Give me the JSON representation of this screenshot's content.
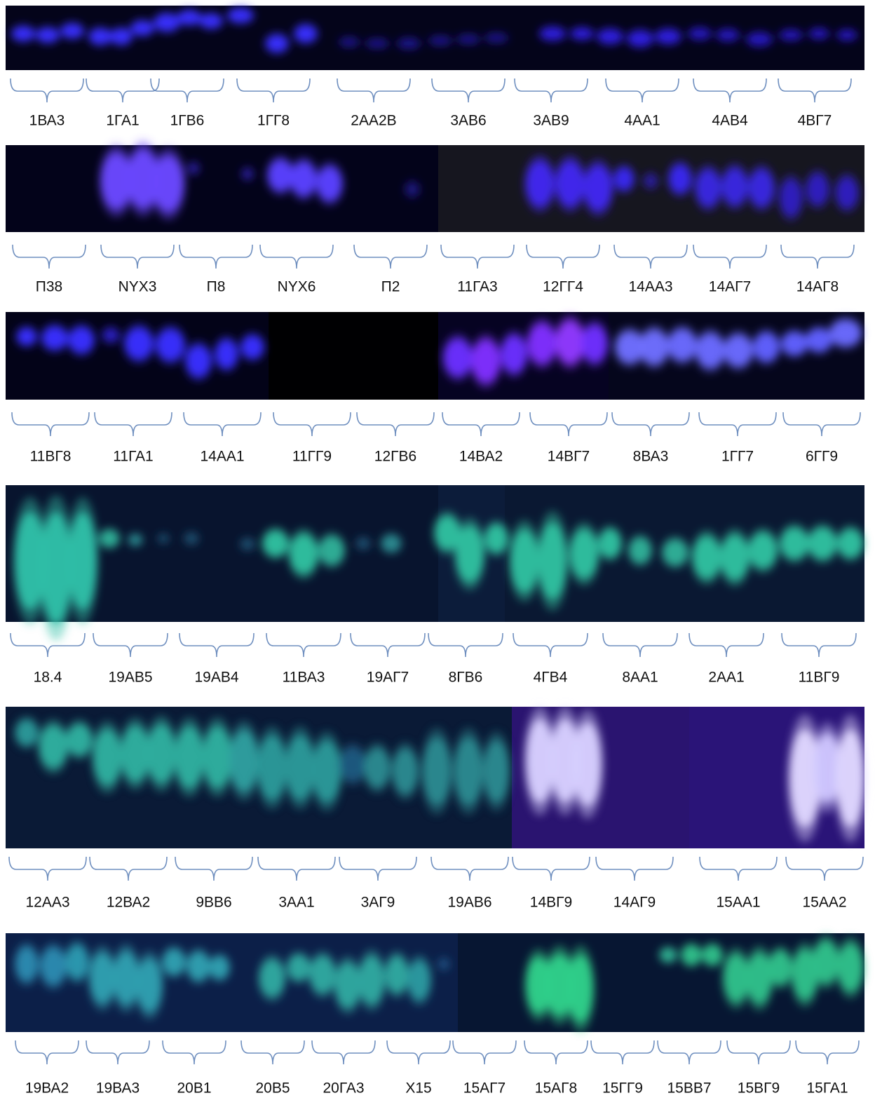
{
  "panels": [
    {
      "labels": [
        "1ВА3",
        "1ГА1",
        "1ГВ6",
        "1ГГ8",
        "2АА2В",
        "3АВ6",
        "3АВ9",
        "4АА1",
        "4АВ4",
        "4ВГ7"
      ]
    },
    {
      "labels": [
        "П38",
        "NYX3",
        "П8",
        "NYX6",
        "П2",
        "11ГА3",
        "12ГГ4",
        "14АА3",
        "14АГ7",
        "14АГ8"
      ]
    },
    {
      "labels": [
        "11ВГ8",
        "11ГА1",
        "14АА1",
        "11ГГ9",
        "12ГВ6",
        "14ВА2",
        "14ВГ7",
        "8ВА3",
        "1ГГ7",
        "6ГГ9"
      ]
    },
    {
      "labels": [
        "18.4",
        "19АВ5",
        "19АВ4",
        "11ВА3",
        "19АГ7",
        "8ГВ6",
        "4ГВ4",
        "8АА1",
        "2АА1",
        "11ВГ9"
      ]
    },
    {
      "labels": [
        "12АА3",
        "12ВА2",
        "9ВВ6",
        "3АА1",
        "3АГ9",
        "19АВ6",
        "14ВГ9",
        "14АГ9",
        "15АА1",
        "15АА2"
      ]
    },
    {
      "labels": [
        "19ВА2",
        "19ВА3",
        "20В1",
        "20В5",
        "20ГА3",
        "Х15",
        "15АГ7",
        "15АГ8",
        "15ГГ9",
        "15ВВ7",
        "15ВГ9",
        "15ГА1"
      ]
    }
  ]
}
